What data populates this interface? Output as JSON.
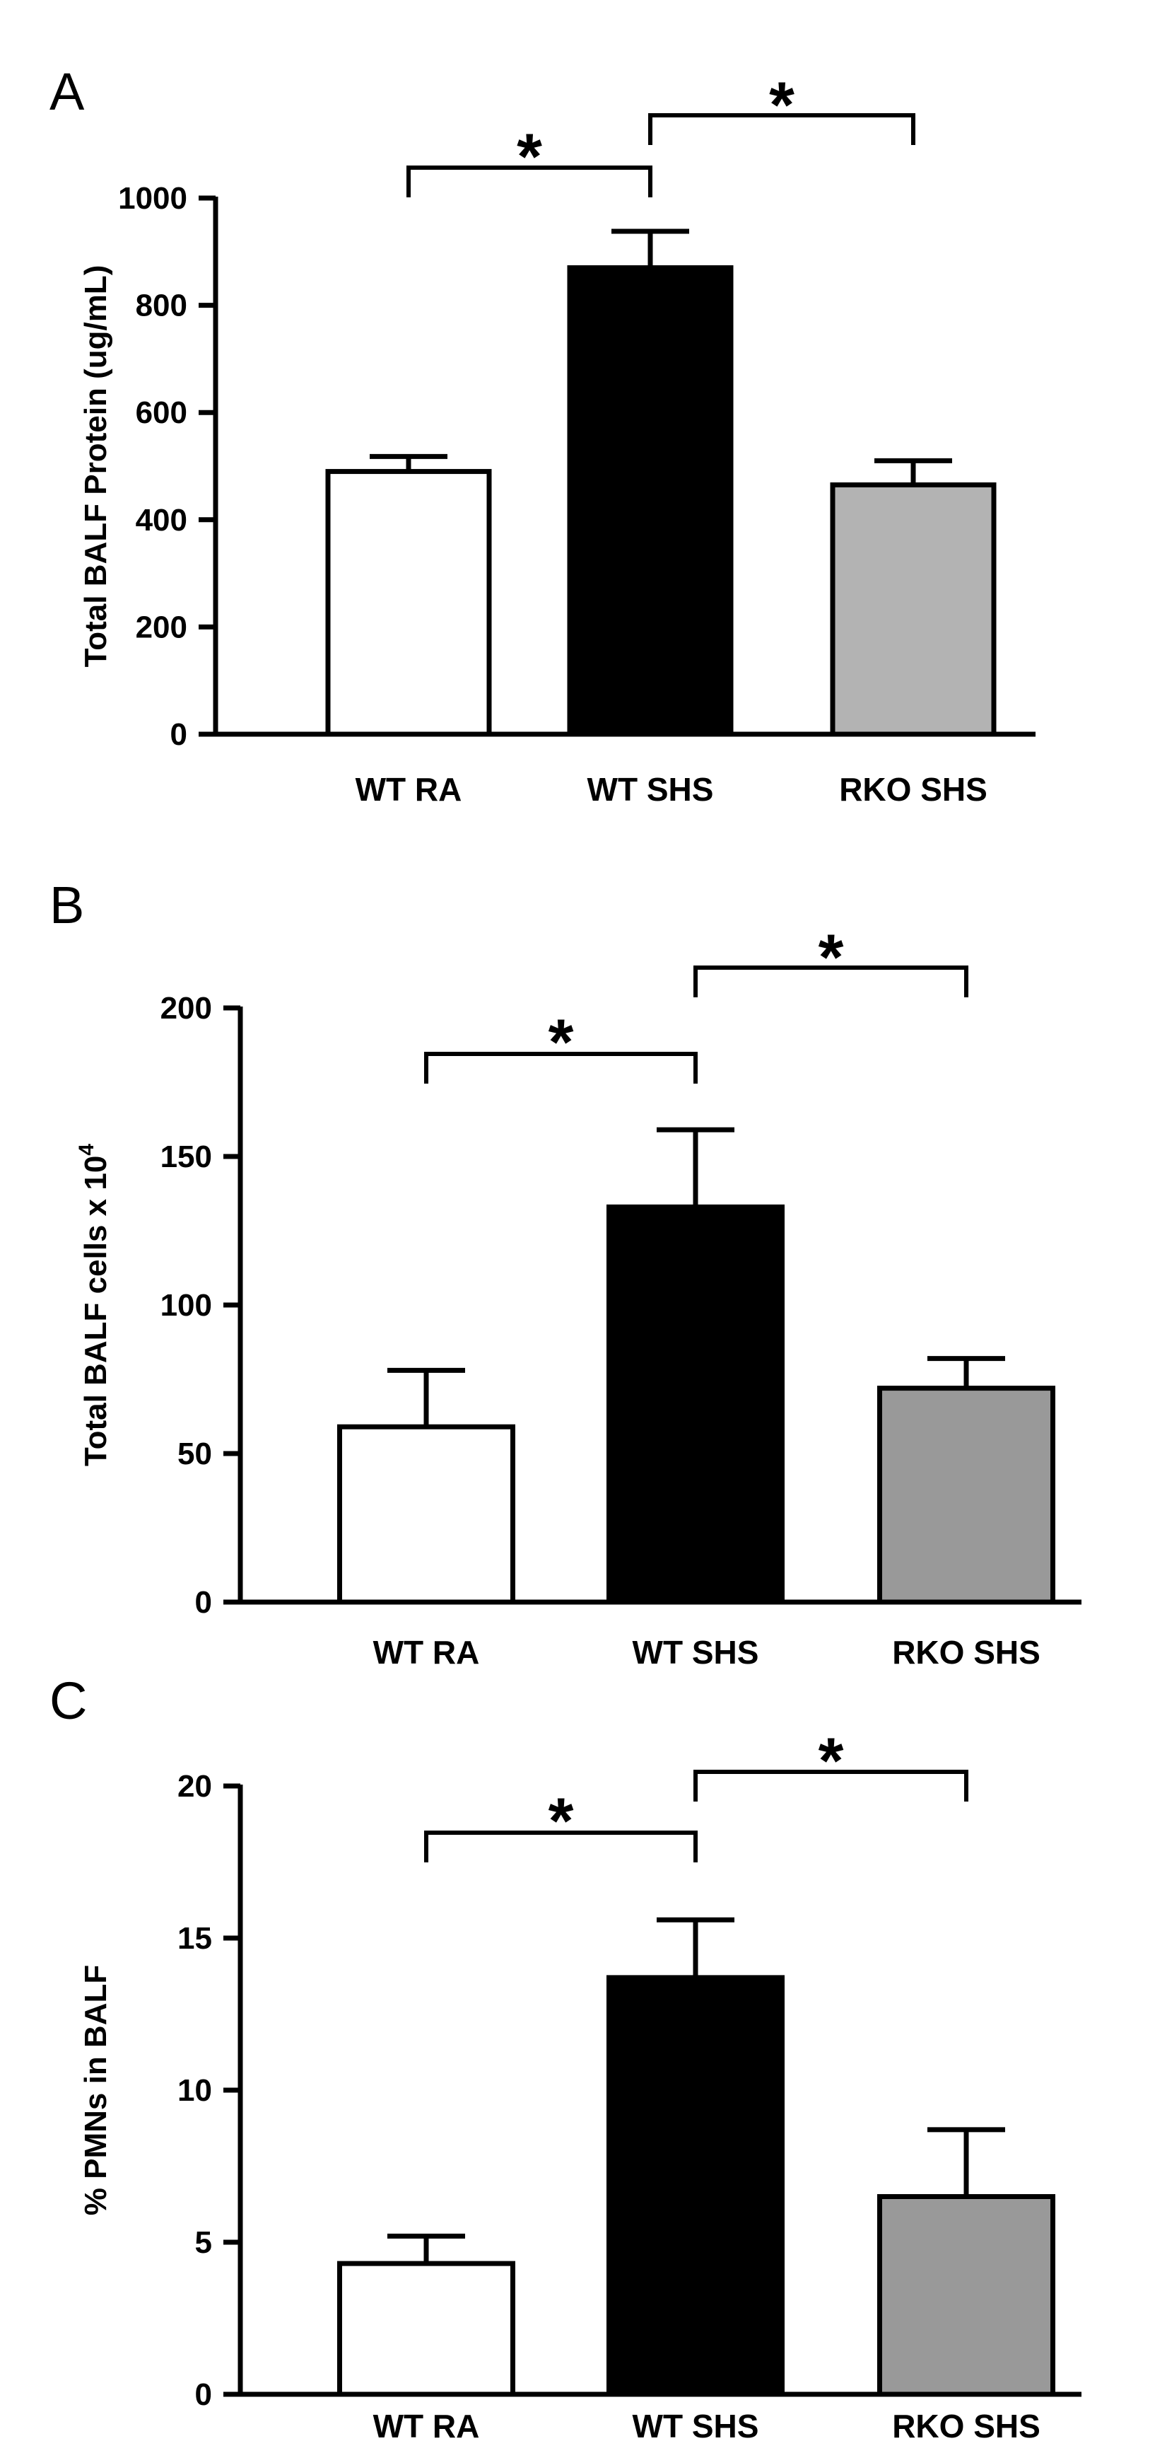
{
  "chart_data": [
    {
      "panel": "A",
      "type": "bar",
      "categories": [
        "WT RA",
        "WT SHS",
        "RKO SHS"
      ],
      "values": [
        490,
        870,
        465
      ],
      "errors": [
        28,
        68,
        45
      ],
      "colors": [
        "#ffffff",
        "#000000",
        "#b3b3b3"
      ],
      "ylabel": "Total BALF Protein (ug/mL)",
      "ylabel_sup": "",
      "ylim": [
        0,
        1000
      ],
      "yticks": [
        0,
        200,
        400,
        600,
        800,
        1000
      ],
      "significance": [
        {
          "from": 0,
          "to": 1,
          "label": "*"
        },
        {
          "from": 1,
          "to": 2,
          "label": "*"
        }
      ]
    },
    {
      "panel": "B",
      "type": "bar",
      "categories": [
        "WT RA",
        "WT SHS",
        "RKO SHS"
      ],
      "values": [
        59,
        133,
        72
      ],
      "errors": [
        19,
        26,
        10
      ],
      "colors": [
        "#ffffff",
        "#000000",
        "#999999"
      ],
      "ylabel": "Total BALF cells x 10",
      "ylabel_sup": "4",
      "ylim": [
        0,
        200
      ],
      "yticks": [
        0,
        50,
        100,
        150,
        200
      ],
      "significance": [
        {
          "from": 0,
          "to": 1,
          "label": "*"
        },
        {
          "from": 1,
          "to": 2,
          "label": "*"
        }
      ]
    },
    {
      "panel": "C",
      "type": "bar",
      "categories": [
        "WT RA",
        "WT SHS",
        "RKO SHS"
      ],
      "values": [
        4.3,
        13.7,
        6.5
      ],
      "errors": [
        0.9,
        1.9,
        2.2
      ],
      "colors": [
        "#ffffff",
        "#000000",
        "#999999"
      ],
      "ylabel": "% PMNs in BALF",
      "ylabel_sup": "",
      "ylim": [
        0,
        20
      ],
      "yticks": [
        0,
        5,
        10,
        15,
        20
      ],
      "significance": [
        {
          "from": 0,
          "to": 1,
          "label": "*"
        },
        {
          "from": 1,
          "to": 2,
          "label": "*"
        }
      ]
    }
  ]
}
